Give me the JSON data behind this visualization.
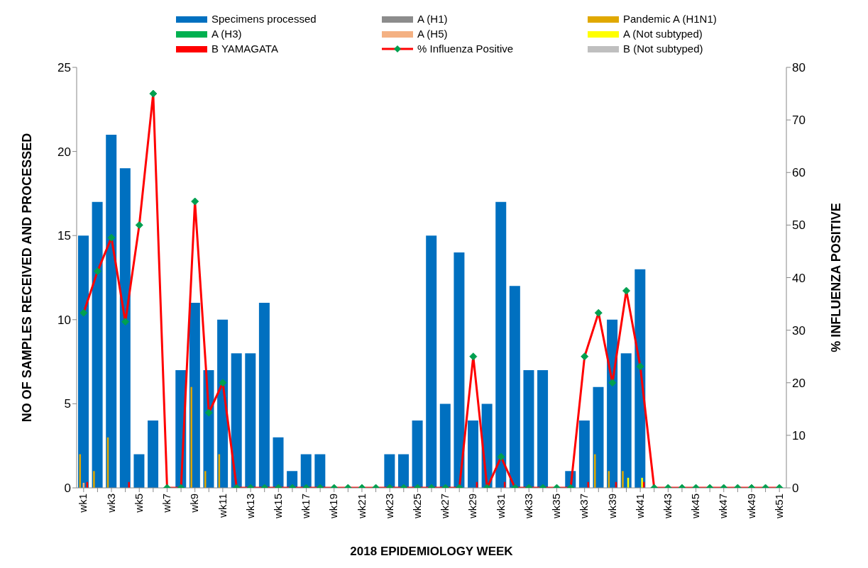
{
  "chart_data": {
    "type": "bar",
    "xlabel": "2018 EPIDEMIOLOGY WEEK",
    "ylabel": "NO OF SAMPLES RECEIVED AND PROCESSED",
    "y2label": "% INFLUENZA POSITIVE",
    "categories": [
      "wk1",
      null,
      "wk3",
      null,
      "wk5",
      null,
      "wk7",
      null,
      "wk9",
      null,
      "wk11",
      null,
      "wk13",
      null,
      "wk15",
      null,
      "wk17",
      null,
      "wk19",
      null,
      "wk21",
      null,
      "wk23",
      null,
      "wk25",
      null,
      "wk27",
      null,
      "wk29",
      null,
      "wk31",
      null,
      "wk33",
      null,
      "wk35",
      null,
      "wk37",
      null,
      "wk39",
      null,
      "wk41",
      null,
      "wk43",
      null,
      "wk45",
      null,
      "wk47",
      null,
      "wk49",
      null,
      "wk51"
    ],
    "series": [
      {
        "name": "Specimens processed",
        "color": "#0070c0",
        "values": [
          15,
          17,
          21,
          19,
          2,
          4,
          0,
          7,
          11,
          7,
          10,
          8,
          8,
          11,
          3,
          1,
          2,
          2,
          0,
          0,
          0,
          0,
          2,
          2,
          4,
          15,
          5,
          14,
          4,
          5,
          17,
          12,
          7,
          7,
          0,
          1,
          4,
          6,
          10,
          8,
          13,
          0,
          0,
          0,
          0,
          0,
          0,
          0,
          0,
          0,
          0
        ]
      },
      {
        "name": "A (H1)",
        "color": "#8c8c8c",
        "values": [
          null,
          null,
          null,
          null,
          null,
          null,
          null,
          null,
          null,
          null,
          null,
          null,
          null,
          null,
          null,
          null,
          null,
          null,
          null,
          null,
          null,
          null,
          null,
          null,
          null,
          null,
          null,
          null,
          null,
          null,
          null,
          null,
          null,
          null,
          null,
          null,
          null,
          null,
          null,
          null,
          null,
          null,
          null,
          null,
          null,
          null,
          null,
          null,
          null,
          null,
          null
        ]
      },
      {
        "name": "Pandemic A (H1N1)",
        "color": "#e0a800",
        "values": [
          2,
          1,
          3,
          null,
          null,
          null,
          null,
          null,
          6,
          1,
          2,
          null,
          null,
          null,
          null,
          null,
          null,
          null,
          null,
          null,
          null,
          null,
          null,
          null,
          null,
          null,
          null,
          null,
          null,
          null,
          null,
          null,
          null,
          null,
          null,
          null,
          null,
          2,
          1,
          1,
          null,
          null,
          null,
          null,
          null,
          null,
          null,
          null,
          null,
          null,
          null
        ]
      },
      {
        "name": "A (H3)",
        "color": "#00b050",
        "values": [
          null,
          null,
          null,
          null,
          null,
          null,
          null,
          null,
          null,
          null,
          null,
          null,
          null,
          null,
          null,
          null,
          null,
          null,
          null,
          null,
          null,
          null,
          null,
          null,
          null,
          null,
          null,
          null,
          null,
          null,
          null,
          null,
          null,
          null,
          null,
          null,
          null,
          null,
          null,
          null,
          null,
          null,
          null,
          null,
          null,
          null,
          null,
          null,
          null,
          null,
          null
        ]
      },
      {
        "name": "A (H5)",
        "color": "#f4b183",
        "values": [
          0.3,
          null,
          null,
          null,
          null,
          null,
          null,
          null,
          null,
          null,
          null,
          null,
          null,
          null,
          null,
          null,
          null,
          null,
          null,
          null,
          null,
          null,
          null,
          null,
          null,
          null,
          null,
          null,
          null,
          null,
          null,
          null,
          null,
          null,
          null,
          null,
          null,
          null,
          null,
          null,
          null,
          null,
          null,
          null,
          null,
          null,
          null,
          null,
          null,
          null,
          null
        ]
      },
      {
        "name": "A (Not subtyped)",
        "color": "#ffff00",
        "values": [
          null,
          null,
          null,
          null,
          null,
          null,
          null,
          null,
          null,
          null,
          null,
          null,
          null,
          null,
          null,
          null,
          null,
          null,
          null,
          null,
          null,
          null,
          null,
          null,
          null,
          null,
          null,
          null,
          null,
          null,
          null,
          null,
          null,
          null,
          null,
          null,
          null,
          null,
          null,
          0.6,
          0.6,
          null,
          null,
          null,
          null,
          null,
          null,
          null,
          null,
          null,
          null
        ]
      },
      {
        "name": "B YAMAGATA",
        "color": "#ff0000",
        "values": [
          0.35,
          null,
          null,
          0.35,
          null,
          null,
          null,
          null,
          null,
          null,
          null,
          null,
          null,
          null,
          null,
          null,
          null,
          null,
          null,
          null,
          null,
          null,
          null,
          null,
          null,
          null,
          null,
          null,
          0.35,
          null,
          0.35,
          null,
          null,
          null,
          null,
          null,
          0.35,
          null,
          0.35,
          null,
          0.35,
          null,
          null,
          null,
          null,
          null,
          null,
          null,
          null,
          null,
          null
        ]
      },
      {
        "name": "% Influenza Positive",
        "type": "line",
        "axis": "y2",
        "color": "#ff0000",
        "marker": "diamond",
        "values": [
          33.3,
          41.2,
          47.6,
          31.6,
          50,
          75,
          0,
          0,
          54.5,
          14.3,
          20,
          0,
          0,
          0,
          0,
          0,
          0,
          0,
          0,
          0,
          0,
          0,
          0,
          0,
          0,
          0,
          0,
          0,
          25,
          0,
          5.9,
          0,
          0,
          0,
          0,
          0,
          25,
          33.3,
          20,
          37.5,
          23.1,
          0,
          0,
          0,
          0,
          0,
          0,
          0,
          0,
          0,
          0
        ]
      },
      {
        "name": "B (Not subtyped)",
        "color": "#bfbfbf",
        "values": [
          null,
          null,
          null,
          null,
          null,
          null,
          null,
          null,
          null,
          null,
          null,
          null,
          null,
          null,
          null,
          null,
          null,
          null,
          null,
          null,
          null,
          null,
          null,
          null,
          null,
          null,
          null,
          null,
          null,
          null,
          null,
          null,
          null,
          null,
          null,
          null,
          null,
          null,
          null,
          null,
          null,
          null,
          null,
          null,
          null,
          null,
          null,
          null,
          null,
          null,
          null
        ]
      }
    ],
    "ylim": [
      0,
      25
    ],
    "yticks": [
      0,
      5,
      10,
      15,
      20,
      25
    ],
    "y2lim": [
      0,
      80
    ],
    "y2ticks": [
      0,
      10,
      20,
      30,
      40,
      50,
      60,
      70,
      80
    ],
    "grid": false,
    "legend": "top"
  }
}
